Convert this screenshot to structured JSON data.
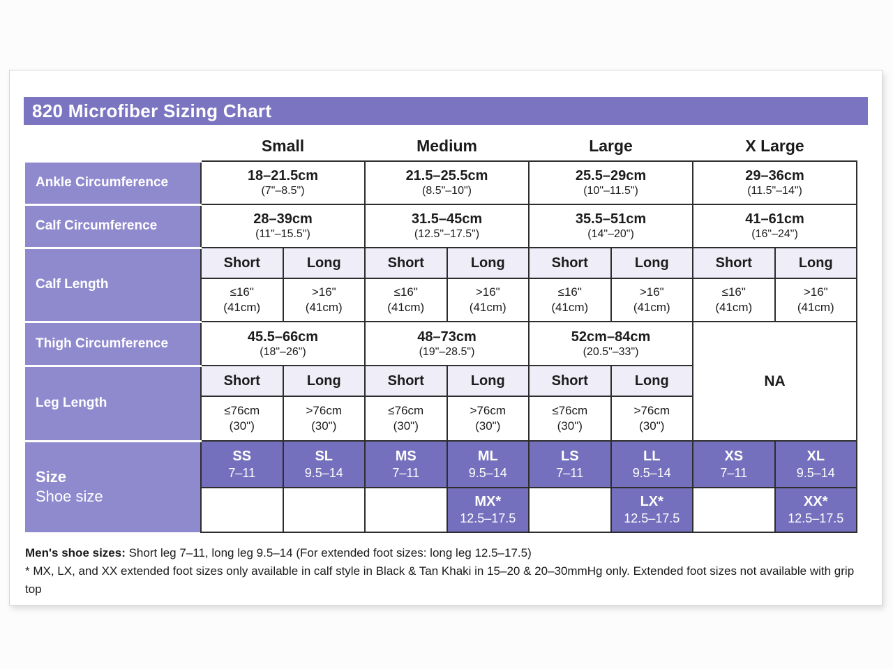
{
  "page": {
    "title": "820 Microfiber Sizing Chart"
  },
  "columns": {
    "sizes": [
      "Small",
      "Medium",
      "Large",
      "X Large"
    ]
  },
  "rows": {
    "ankle": {
      "label": "Ankle Circumference",
      "cells": [
        {
          "cm": "18–21.5cm",
          "inch": "(7\"–8.5\")"
        },
        {
          "cm": "21.5–25.5cm",
          "inch": "(8.5\"–10\")"
        },
        {
          "cm": "25.5–29cm",
          "inch": "(10\"–11.5\")"
        },
        {
          "cm": "29–36cm",
          "inch": "(11.5\"–14\")"
        }
      ]
    },
    "calf_circumference": {
      "label": "Calf Circumference",
      "cells": [
        {
          "cm": "28–39cm",
          "inch": "(11\"–15.5\")"
        },
        {
          "cm": "31.5–45cm",
          "inch": "(12.5\"–17.5\")"
        },
        {
          "cm": "35.5–51cm",
          "inch": "(14\"–20\")"
        },
        {
          "cm": "41–61cm",
          "inch": "(16\"–24\")"
        }
      ]
    },
    "calf_length": {
      "label": "Calf Length",
      "subheaders": [
        "Short",
        "Long",
        "Short",
        "Long",
        "Short",
        "Long",
        "Short",
        "Long"
      ],
      "cells": [
        {
          "v": "≤16\"",
          "s": "(41cm)"
        },
        {
          "v": ">16\"",
          "s": "(41cm)"
        },
        {
          "v": "≤16\"",
          "s": "(41cm)"
        },
        {
          "v": ">16\"",
          "s": "(41cm)"
        },
        {
          "v": "≤16\"",
          "s": "(41cm)"
        },
        {
          "v": ">16\"",
          "s": "(41cm)"
        },
        {
          "v": "≤16\"",
          "s": "(41cm)"
        },
        {
          "v": ">16\"",
          "s": "(41cm)"
        }
      ]
    },
    "thigh": {
      "label": "Thigh Circumference",
      "cells": [
        {
          "cm": "45.5–66cm",
          "inch": "(18\"–26\")"
        },
        {
          "cm": "48–73cm",
          "inch": "(19\"–28.5\")"
        },
        {
          "cm": "52cm–84cm",
          "inch": "(20.5\"–33\")"
        }
      ],
      "na": "NA"
    },
    "leg_length": {
      "label": "Leg Length",
      "subheaders": [
        "Short",
        "Long",
        "Short",
        "Long",
        "Short",
        "Long"
      ],
      "cells": [
        {
          "v": "≤76cm",
          "s": "(30\")"
        },
        {
          "v": ">76cm",
          "s": "(30\")"
        },
        {
          "v": "≤76cm",
          "s": "(30\")"
        },
        {
          "v": ">76cm",
          "s": "(30\")"
        },
        {
          "v": "≤76cm",
          "s": "(30\")"
        },
        {
          "v": ">76cm",
          "s": "(30\")"
        }
      ]
    },
    "size": {
      "label_line1": "Size",
      "label_line2": "Shoe size",
      "primary": [
        {
          "code": "SS",
          "range": "7–11"
        },
        {
          "code": "SL",
          "range": "9.5–14"
        },
        {
          "code": "MS",
          "range": "7–11"
        },
        {
          "code": "ML",
          "range": "9.5–14"
        },
        {
          "code": "LS",
          "range": "7–11"
        },
        {
          "code": "LL",
          "range": "9.5–14"
        },
        {
          "code": "XS",
          "range": "7–11"
        },
        {
          "code": "XL",
          "range": "9.5–14"
        }
      ],
      "extended": [
        {
          "code": "MX*",
          "range": "12.5–17.5"
        },
        {
          "code": "LX*",
          "range": "12.5–17.5"
        },
        {
          "code": "XX*",
          "range": "12.5–17.5"
        }
      ]
    }
  },
  "footnotes": {
    "line1_bold": "Men's shoe sizes:",
    "line1_rest": " Short leg 7–11, long leg 9.5–14 (For extended foot sizes: long leg 12.5–17.5)",
    "line2": "* MX, LX, and XX extended foot sizes only available in calf style in Black & Tan Khaki in 15–20 & 20–30mmHg only. Extended foot sizes not available with grip top"
  },
  "colors": {
    "title_bar": "#7a74c1",
    "row_header": "#8f89ce",
    "size_cell": "#7470bd",
    "subheader_bg": "#efedf7",
    "cell_border": "#2d2d2d"
  }
}
